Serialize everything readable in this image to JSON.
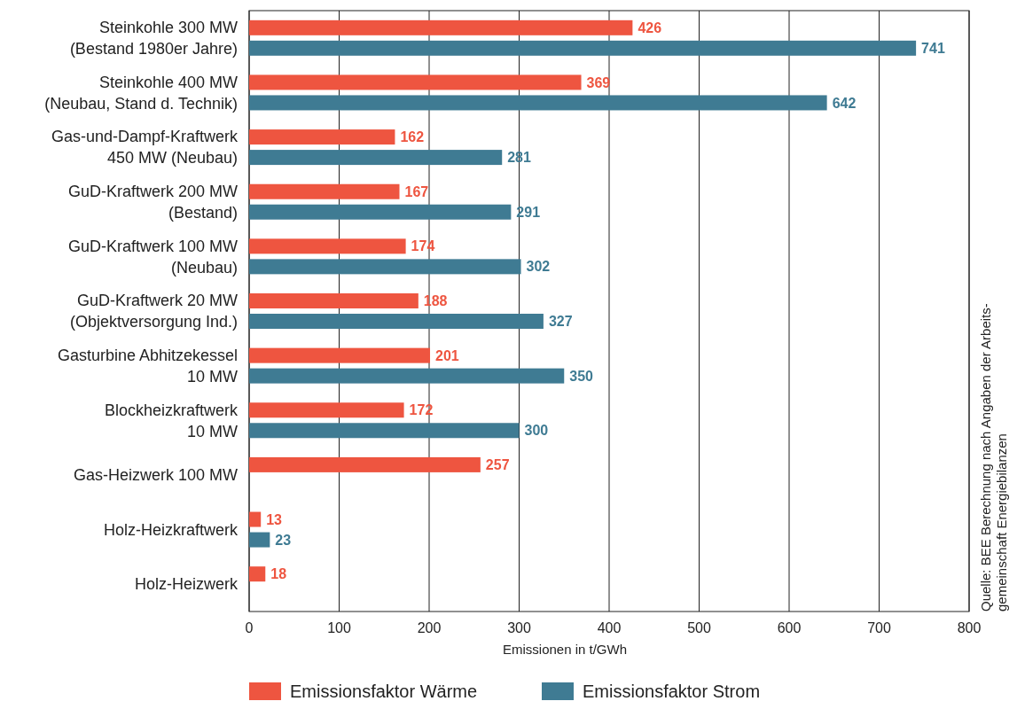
{
  "chart_data": {
    "type": "bar",
    "orientation": "horizontal",
    "categories": [
      "Steinkohle 300 MW\n(Bestand 1980er Jahre)",
      "Steinkohle 400 MW\n(Neubau, Stand d. Technik)",
      "Gas-und-Dampf-Kraftwerk\n450 MW (Neubau)",
      "GuD-Kraftwerk 200 MW\n(Bestand)",
      "GuD-Kraftwerk 100 MW\n(Neubau)",
      "GuD-Kraftwerk 20 MW\n(Objektversorgung Ind.)",
      "Gasturbine Abhitzekessel\n10 MW",
      "Blockheizkraftwerk\n10 MW",
      "Gas-Heizwerk 100 MW",
      "Holz-Heizkraftwerk",
      "Holz-Heizwerk"
    ],
    "series": [
      {
        "name": "Emissionsfaktor Wärme",
        "color": "#ee5540",
        "values": [
          426,
          369,
          162,
          167,
          174,
          188,
          201,
          172,
          257,
          13,
          18
        ]
      },
      {
        "name": "Emissionsfaktor Strom",
        "color": "#3f7b93",
        "values": [
          741,
          642,
          281,
          291,
          302,
          327,
          350,
          300,
          null,
          23,
          null
        ]
      }
    ],
    "xlim": [
      0,
      800
    ],
    "xticks": [
      0,
      100,
      200,
      300,
      400,
      500,
      600,
      700,
      800
    ],
    "xlabel": "Emissionen in t/GWh",
    "grid": "x",
    "legend": "bottom",
    "data_labels": true,
    "annotations": [
      "Quelle: BEE Berechnung nach Angaben der Arbeits-\ngemeinschaft Energiebilanzen"
    ]
  }
}
